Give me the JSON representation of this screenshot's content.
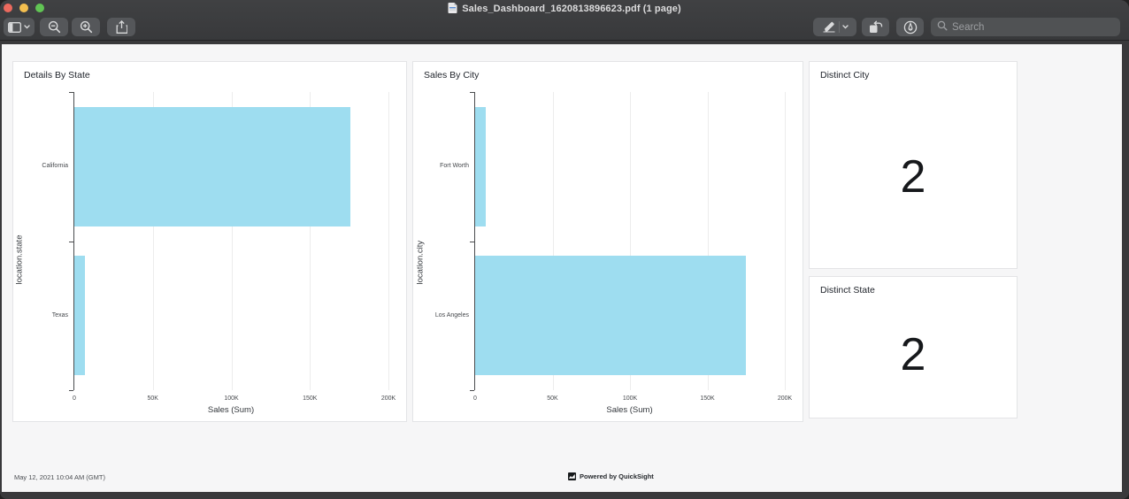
{
  "window": {
    "title": "Sales_Dashboard_1620813896623.pdf (1 page)",
    "search_placeholder": "Search"
  },
  "page_footer": {
    "timestamp": "May 12, 2021 10:04 AM (GMT)",
    "branding": "Powered by QuickSight"
  },
  "colors": {
    "bar_fill": "#9EDDF0",
    "chrome_bg": "#39393b",
    "page_bg": "#f6f6f7"
  },
  "chart_data": [
    {
      "type": "bar",
      "orientation": "horizontal",
      "title": "Details By State",
      "categories": [
        "California",
        "Texas"
      ],
      "values": [
        176000,
        7000
      ],
      "xlabel": "Sales (Sum)",
      "ylabel": "location.state",
      "xlim": [
        0,
        200000
      ],
      "xtick_labels": [
        "0",
        "50K",
        "100K",
        "150K",
        "200K"
      ],
      "grid": true,
      "bar_color": "#9EDDF0"
    },
    {
      "type": "bar",
      "orientation": "horizontal",
      "title": "Sales By City",
      "categories": [
        "Fort Worth",
        "Los Angeles"
      ],
      "values": [
        7000,
        175000
      ],
      "xlabel": "Sales (Sum)",
      "ylabel": "location.city",
      "xlim": [
        0,
        200000
      ],
      "xtick_labels": [
        "0",
        "50K",
        "100K",
        "150K",
        "200K"
      ],
      "grid": true,
      "bar_color": "#9EDDF0"
    },
    {
      "type": "kpi",
      "title": "Distinct City",
      "value": "2"
    },
    {
      "type": "kpi",
      "title": "Distinct State",
      "value": "2"
    }
  ]
}
